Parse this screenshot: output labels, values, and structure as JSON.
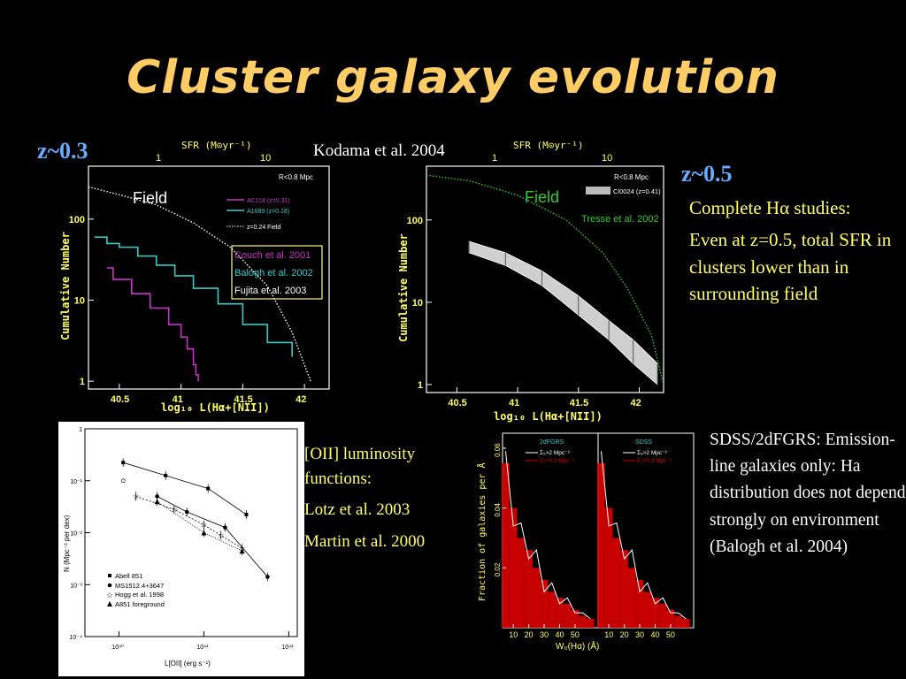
{
  "slide": {
    "title": "Cluster galaxy evolution",
    "z_low": "z~0.3",
    "z_high": "z~0.5",
    "citation_top": "Kodama et al. 2004",
    "right_text": {
      "line1": "Complete Hα studies:",
      "line2": "Even at z=0.5, total SFR in clusters lower than in surrounding field"
    },
    "oii_text": {
      "title": "[OII] luminosity functions:",
      "ref1": "Lotz et al.  2003",
      "ref2": "Martin et al. 2000"
    },
    "sdss_text": "SDSS/2dFGRS: Emission-line galaxies only: Ha distribution does not depend strongly on environment (Balogh et al. 2004)"
  },
  "colors": {
    "title": "#ffcc66",
    "z": "#66aaff",
    "yellow": "#ffff66",
    "magenta": "#cc33cc",
    "cyan": "#33cccc",
    "green": "#33cc33",
    "red": "#dd0000"
  },
  "chart_data": [
    {
      "type": "line",
      "panel": "left",
      "top_axis_label": "SFR (M⊙yr⁻¹)",
      "top_ticks": [
        "1",
        "10"
      ],
      "xlabel": "log₁₀ L(Hα+[NII])",
      "ylabel": "Cumulative Number",
      "x_ticks": [
        "40.5",
        "41",
        "41.5",
        "42"
      ],
      "y_ticks": [
        "1",
        "10",
        "100"
      ],
      "xlim": [
        40.25,
        42.2
      ],
      "ylog": true,
      "ylim": [
        0.8,
        450
      ],
      "corner_label": "R<0.8 Mpc",
      "field_label": "Field",
      "legend": [
        "AC114 (z=0.31)",
        "A1689 (z=0.18)",
        "z=0.24 Field"
      ],
      "refs": [
        "Couch et al. 2001",
        "Balogh et al. 2002",
        "Fujita et al. 2003"
      ],
      "series": [
        {
          "name": "AC114 (z=0.31)",
          "color": "#cc33cc",
          "x": [
            40.4,
            40.45,
            40.6,
            40.75,
            40.9,
            41.0,
            41.05,
            41.1,
            41.12,
            41.14
          ],
          "y": [
            25,
            18,
            12,
            8,
            5,
            3.5,
            2.5,
            1.6,
            1.2,
            1.0
          ]
        },
        {
          "name": "A1689 (z=0.18)",
          "color": "#33cccc",
          "x": [
            40.3,
            40.4,
            40.5,
            40.65,
            40.8,
            40.95,
            41.1,
            41.3,
            41.5,
            41.7,
            41.9
          ],
          "y": [
            60,
            50,
            45,
            35,
            27,
            20,
            14,
            9,
            5,
            3,
            2
          ]
        },
        {
          "name": "z=0.24 Field",
          "color": "#ffffff",
          "x": [
            40.25,
            40.5,
            40.8,
            41.1,
            41.4,
            41.7,
            41.9,
            42.05
          ],
          "y": [
            250,
            200,
            150,
            90,
            45,
            15,
            4,
            1
          ]
        }
      ]
    },
    {
      "type": "area",
      "panel": "middle",
      "top_axis_label": "SFR (M⊙yr⁻¹)",
      "top_ticks": [
        "1",
        "10"
      ],
      "xlabel": "log₁₀ L(Hα+[NII])",
      "ylabel": "Cumulative Number",
      "x_ticks": [
        "40.5",
        "41",
        "41.5",
        "42"
      ],
      "y_ticks": [
        "1",
        "10",
        "100"
      ],
      "xlim": [
        40.25,
        42.2
      ],
      "ylog": true,
      "ylim": [
        0.8,
        450
      ],
      "corner_label": "R<0.8 Mpc",
      "field_label": "Field",
      "legend": [
        "Cl0024 (z=0.41)"
      ],
      "ref": "Tresse et al. 2002",
      "series": [
        {
          "name": "Cl0024 (z=0.41)",
          "color": "#dddddd",
          "x": [
            40.6,
            40.9,
            41.2,
            41.5,
            41.75,
            41.95,
            42.15
          ],
          "y_low": [
            40,
            28,
            16,
            7,
            3.5,
            1.8,
            1.0
          ],
          "y_high": [
            55,
            40,
            24,
            12,
            6,
            3.5,
            1.8
          ]
        },
        {
          "name": "Field",
          "color": "#33cc33",
          "x": [
            40.25,
            40.6,
            41.0,
            41.4,
            41.7,
            41.9,
            42.1,
            42.2
          ],
          "y": [
            350,
            300,
            200,
            100,
            40,
            15,
            4,
            1
          ]
        }
      ]
    },
    {
      "type": "line",
      "panel": "oii",
      "xlabel": "L[OII] (erg s⁻¹)",
      "ylabel": "N (Mpc⁻³ per dex)",
      "x_ticks": [
        "10⁴⁰",
        "10⁴¹",
        "10⁴²"
      ],
      "y_ticks": [
        "1",
        "10⁻¹",
        "10⁻²",
        "10⁻³",
        "10⁻⁴"
      ],
      "xlog": true,
      "xlim": [
        39.6,
        42.1
      ],
      "ylog": true,
      "ylim": [
        -4,
        0
      ],
      "legend": [
        "Abell 851",
        "MS1512.4+3647",
        "Hogg et al. 1998",
        "A851 foreground"
      ],
      "series": [
        {
          "name": "Abell 851",
          "x": [
            40.05,
            40.55,
            41.05,
            41.5
          ],
          "y": [
            -0.65,
            -0.9,
            -1.15,
            -1.65
          ]
        },
        {
          "name": "MS1512.4+3647",
          "x": [
            40.45,
            40.8,
            41.25,
            41.75
          ],
          "y": [
            -1.3,
            -1.6,
            -1.9,
            -2.85
          ]
        },
        {
          "name": "Hogg et al. 1998",
          "x": [
            40.2,
            40.65,
            41.0,
            41.2,
            41.45
          ],
          "y": [
            -1.3,
            -1.55,
            -1.85,
            -2.05,
            -2.3
          ]
        },
        {
          "name": "A851 foreground",
          "x": [
            40.45,
            41.0,
            41.45
          ],
          "y": [
            -1.4,
            -2.0,
            -2.35
          ]
        }
      ]
    },
    {
      "type": "bar",
      "panel": "sdss",
      "panel_labels": [
        "2dFGRS",
        "SDSS"
      ],
      "legend": [
        "Σ₅>2 Mpc⁻²",
        "Σ₅<0.2 Mpc⁻²"
      ],
      "xlabel": "W₀(Hα) (Å)",
      "ylabel": "Fraction of galaxies per Å",
      "x_ticks": [
        "10",
        "20",
        "30",
        "40",
        "50"
      ],
      "y_ticks": [
        "0.02",
        "0.04",
        "0.06"
      ],
      "ylim": [
        0,
        0.065
      ],
      "x": [
        5,
        10,
        15,
        20,
        25,
        30,
        35,
        40,
        45,
        50,
        55,
        60
      ],
      "values": [
        0.055,
        0.04,
        0.03,
        0.026,
        0.02,
        0.016,
        0.012,
        0.01,
        0.008,
        0.006,
        0.004,
        0.003
      ]
    }
  ]
}
